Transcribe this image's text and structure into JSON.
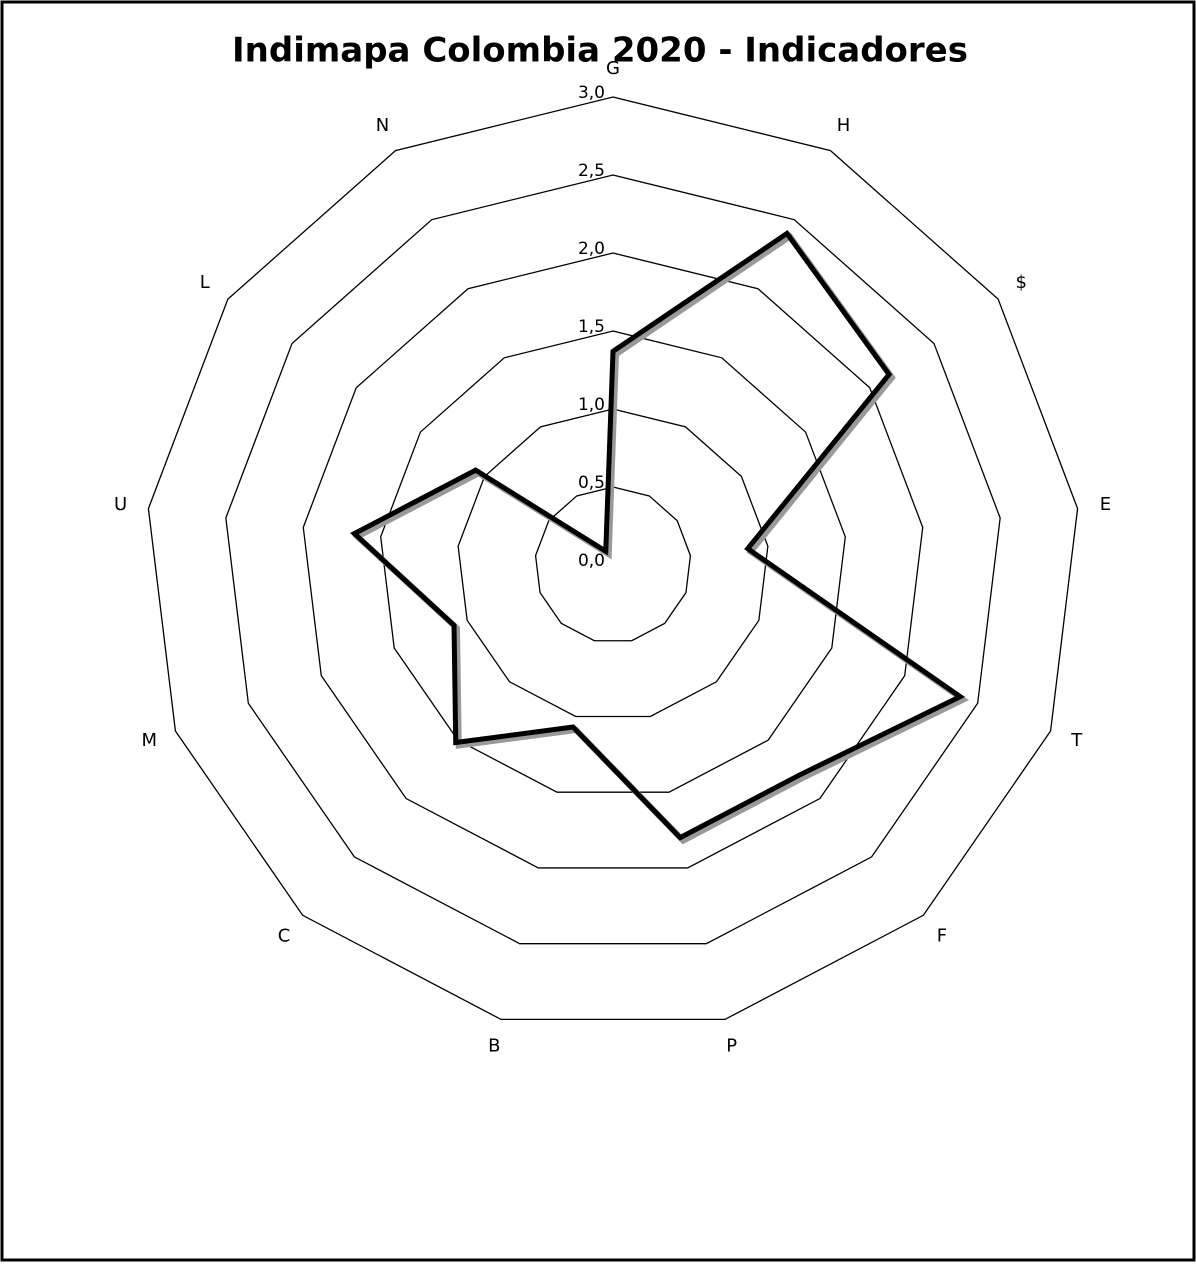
{
  "chart_data": {
    "type": "radar",
    "title": "Indimapa Colombia 2020 - Indicadores",
    "categories": [
      "G",
      "H",
      "$",
      "E",
      "T",
      "F",
      "P",
      "B",
      "C",
      "M",
      "U",
      "L",
      "N"
    ],
    "series": [
      {
        "name": "Indicadores",
        "color": "#000000",
        "values": [
          1.37,
          2.4,
          2.15,
          0.87,
          2.38,
          1.8,
          1.8,
          1.07,
          1.52,
          1.09,
          1.67,
          1.07,
          0.1
        ]
      }
    ],
    "ylim": [
      0,
      3
    ],
    "yticks": [
      {
        "value": 0,
        "label": "0,0"
      },
      {
        "value": 0.5,
        "label": "0,5"
      },
      {
        "value": 1,
        "label": "1,0"
      },
      {
        "value": 1.5,
        "label": "1,5"
      },
      {
        "value": 2,
        "label": "2,0"
      },
      {
        "value": 2.5,
        "label": "2,5"
      },
      {
        "value": 3,
        "label": "3,0"
      }
    ],
    "grid": true
  }
}
